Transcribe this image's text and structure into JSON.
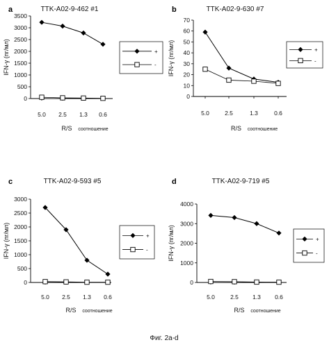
{
  "figure_caption": "Фиг. 2a-d",
  "chart_data": [
    {
      "type": "line",
      "letter": "a",
      "title": "TTK-A02-9-462 #1",
      "ylabel": "IFN-γ (пг/мл)",
      "xlabel_main": "R/S",
      "xlabel_sub": "соотношение",
      "categories": [
        "5.0",
        "2.5",
        "1.3",
        "0.6"
      ],
      "ylim": [
        0,
        3500
      ],
      "yticks": [
        "0",
        "500",
        "1000",
        "1500",
        "2000",
        "2500",
        "3000",
        "3500"
      ],
      "legend_position": "right",
      "series": [
        {
          "name": "+",
          "marker": "filled-diamond",
          "values": [
            3230,
            3070,
            2780,
            2300
          ]
        },
        {
          "name": "-",
          "marker": "open-square",
          "values": [
            55,
            30,
            20,
            10
          ]
        }
      ]
    },
    {
      "type": "line",
      "letter": "b",
      "title": "TTK-A02-9-630 #7",
      "ylabel": "IFN-γ (пг/мл)",
      "xlabel_main": "R/S",
      "xlabel_sub": "соотношение",
      "categories": [
        "5.0",
        "2.5",
        "1.3",
        "0.6"
      ],
      "ylim": [
        0,
        70
      ],
      "yticks": [
        "0",
        "10",
        "20",
        "30",
        "40",
        "50",
        "60",
        "70"
      ],
      "legend_position": "right",
      "series": [
        {
          "name": "+",
          "marker": "filled-diamond",
          "values": [
            59,
            26,
            16,
            13
          ]
        },
        {
          "name": "-",
          "marker": "open-square",
          "values": [
            25,
            15,
            14,
            12
          ]
        }
      ]
    },
    {
      "type": "line",
      "letter": "c",
      "title": "TTK-A02-9-593 #5",
      "ylabel": "IFN-γ (пг/мл)",
      "xlabel_main": "R/S",
      "xlabel_sub": "соотношение",
      "categories": [
        "5.0",
        "2.5",
        "1.3",
        "0.6"
      ],
      "ylim": [
        0,
        3000
      ],
      "yticks": [
        "0",
        "500",
        "1000",
        "1500",
        "2000",
        "2500",
        "3000"
      ],
      "legend_position": "right",
      "series": [
        {
          "name": "+",
          "marker": "filled-diamond",
          "values": [
            2700,
            1900,
            800,
            300
          ]
        },
        {
          "name": "-",
          "marker": "open-square",
          "values": [
            30,
            20,
            10,
            10
          ]
        }
      ]
    },
    {
      "type": "line",
      "letter": "d",
      "title": "TTK-A02-9-719 #5",
      "ylabel": "IFN-γ (пг/мл)",
      "xlabel_main": "R/S",
      "xlabel_sub": "соотношение",
      "categories": [
        "5.0",
        "2.5",
        "1.3",
        "0.6"
      ],
      "ylim": [
        0,
        4000
      ],
      "yticks": [
        "0",
        "1000",
        "2000",
        "3000",
        "4000"
      ],
      "legend_position": "right",
      "series": [
        {
          "name": "+",
          "marker": "filled-diamond",
          "values": [
            3420,
            3310,
            3000,
            2520
          ]
        },
        {
          "name": "-",
          "marker": "open-square",
          "values": [
            50,
            40,
            20,
            15
          ]
        }
      ]
    }
  ]
}
